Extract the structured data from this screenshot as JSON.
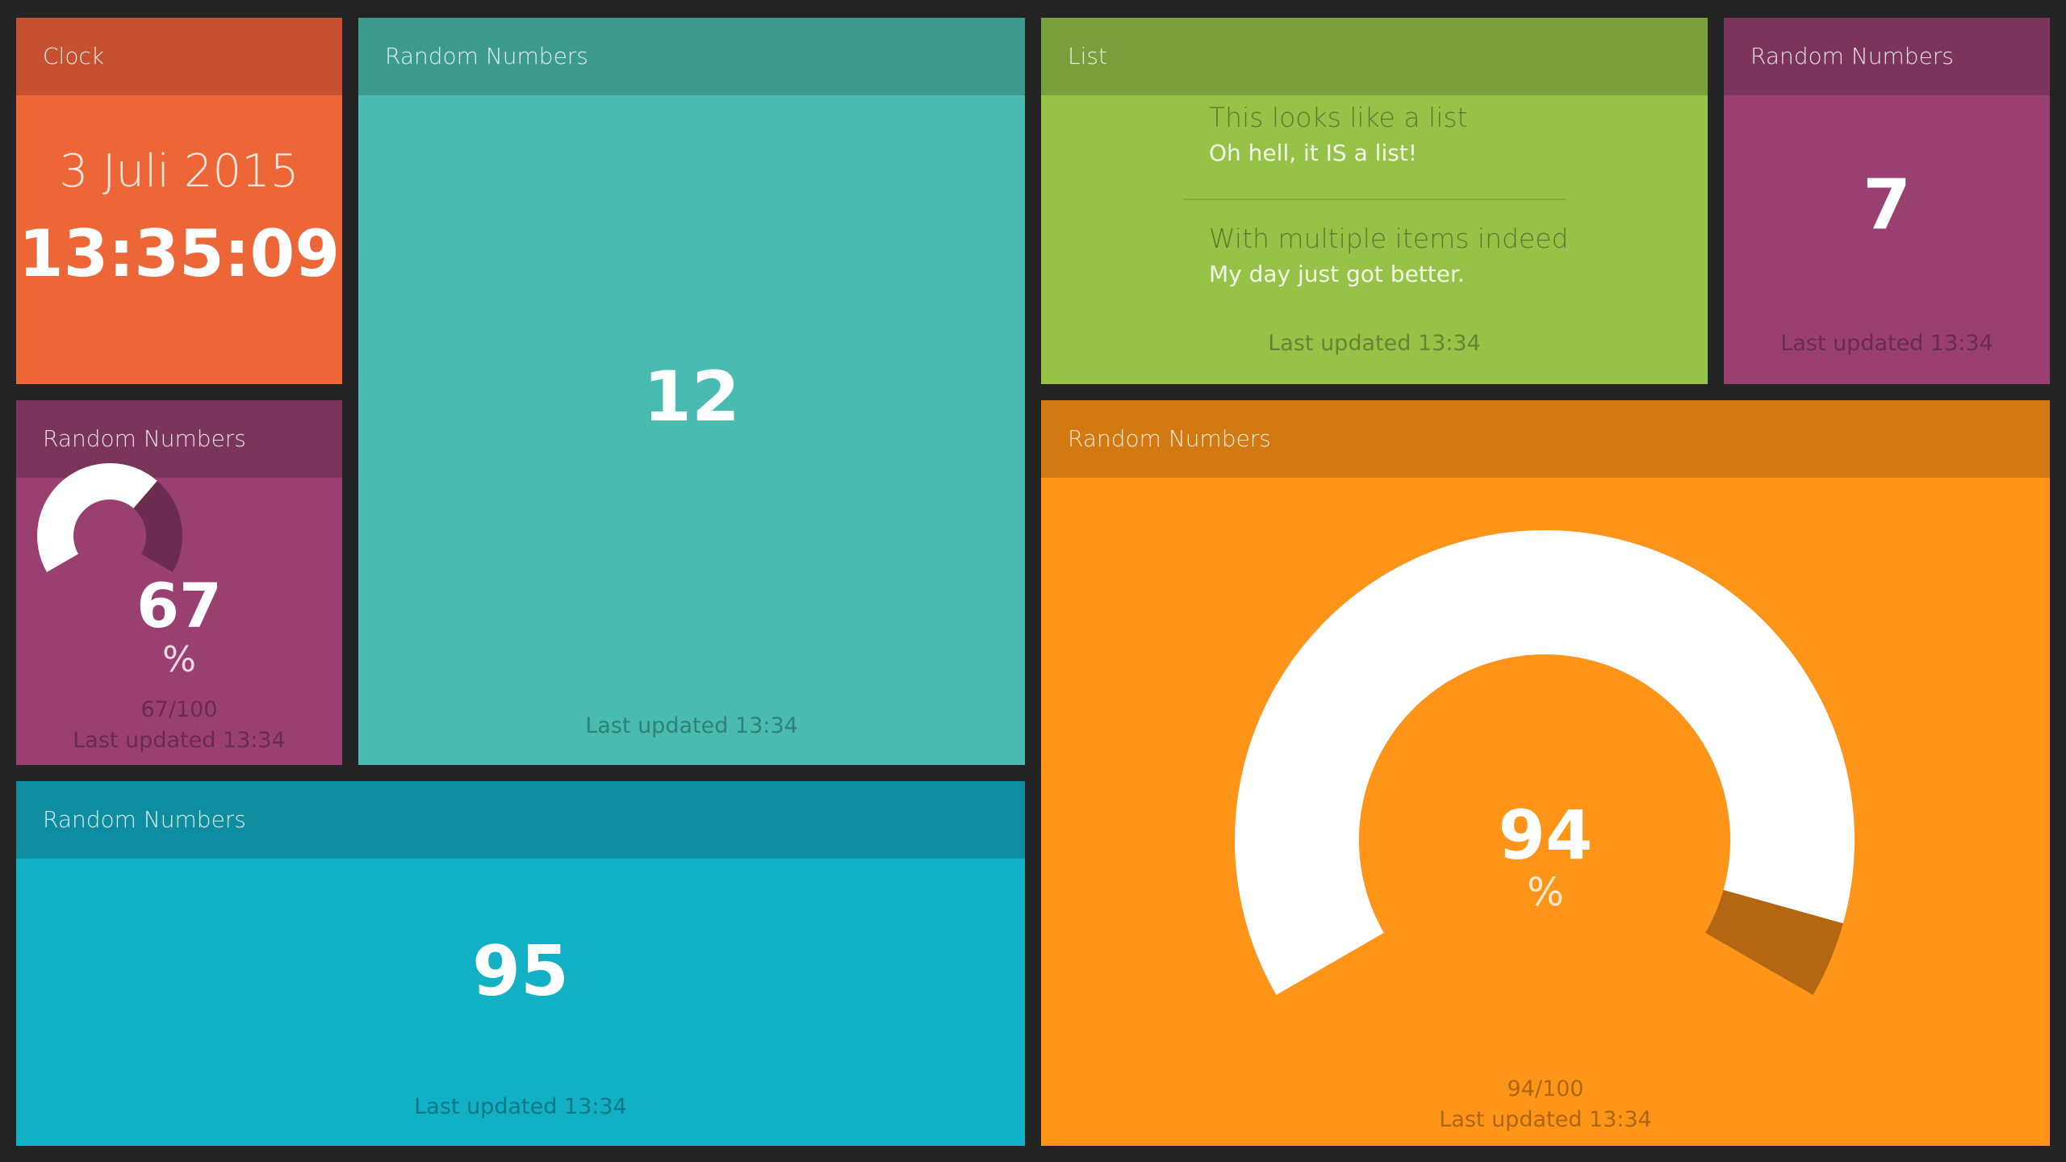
{
  "clock": {
    "title": "Clock",
    "date": "3 Juli 2015",
    "time": "13:35:09"
  },
  "teal_number": {
    "title": "Random Numbers",
    "value": "12",
    "updated": "Last updated 13:34"
  },
  "list": {
    "title": "List",
    "items": [
      {
        "label": "This looks like a list",
        "value": "Oh hell, it IS a list!"
      },
      {
        "label": "With multiple items indeed",
        "value": "My day just got better."
      }
    ],
    "updated": "Last updated 13:34"
  },
  "purple_number": {
    "title": "Random Numbers",
    "value": "7",
    "updated": "Last updated 13:34"
  },
  "small_gauge": {
    "title": "Random Numbers",
    "value": 67,
    "max": 100,
    "value_text": "67",
    "unit": "%",
    "ratio_text": "67/100",
    "updated": "Last updated 13:34",
    "colors": {
      "track": "#6c2c4f",
      "fill": "#ffffff"
    }
  },
  "cyan_number": {
    "title": "Random Numbers",
    "value": "95",
    "updated": "Last updated 13:34"
  },
  "big_gauge": {
    "title": "Random Numbers",
    "value": 94,
    "max": 100,
    "value_text": "94",
    "unit": "%",
    "ratio_text": "94/100",
    "updated": "Last updated 13:34",
    "colors": {
      "track": "#b46712",
      "fill": "#ffffff"
    }
  }
}
